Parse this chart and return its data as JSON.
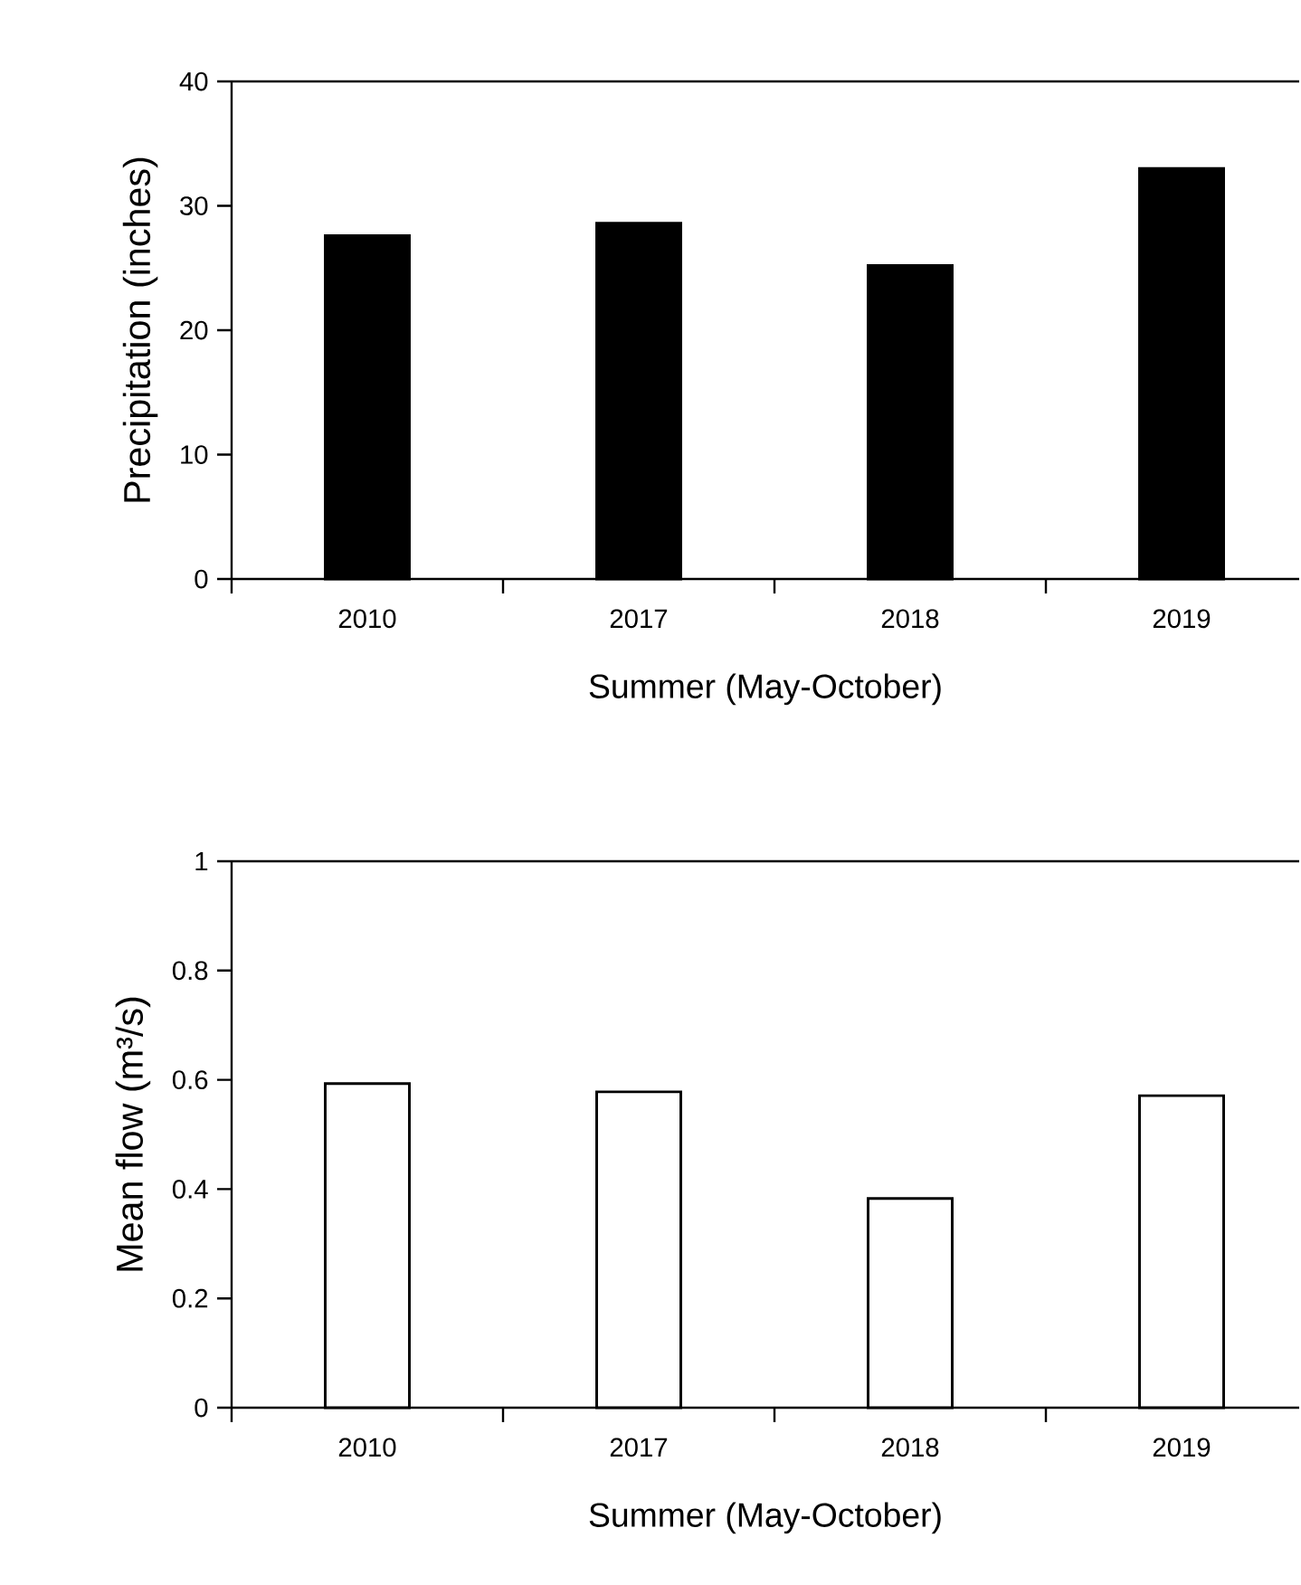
{
  "chart_data": [
    {
      "type": "bar",
      "categories": [
        "2010",
        "2017",
        "2018",
        "2019"
      ],
      "values": [
        27.6,
        28.6,
        25.2,
        33.0
      ],
      "color": "#000000",
      "ylim": [
        0,
        40
      ],
      "yticks": [
        0,
        10,
        20,
        30,
        40
      ],
      "xlabel": "Summer (May-October)",
      "ylabel": "Precipitation  (inches)"
    },
    {
      "type": "bar",
      "categories": [
        "2010",
        "2017",
        "2018",
        "2019"
      ],
      "values": [
        0.593,
        0.578,
        0.383,
        0.571
      ],
      "color": "#ffffff",
      "ylim": [
        0,
        1
      ],
      "yticks": [
        0,
        0.2,
        0.4,
        0.6,
        0.8,
        1
      ],
      "xlabel": "Summer (May-October)",
      "ylabel": "Mean flow (m³/s)"
    }
  ]
}
